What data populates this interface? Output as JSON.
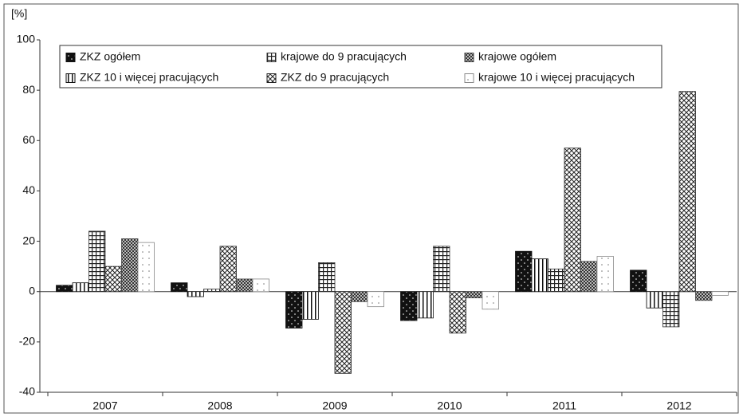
{
  "chart_data": {
    "type": "bar",
    "y_unit_label": "[%]",
    "categories": [
      "2007",
      "2008",
      "2009",
      "2010",
      "2011",
      "2012"
    ],
    "series": [
      {
        "name": "ZKZ ogółem",
        "pattern": "dots-dark",
        "color": "#111111",
        "values": [
          2.5,
          3.5,
          -14.5,
          -11.5,
          16,
          8.5
        ]
      },
      {
        "name": "ZKZ 10 i więcej pracujących",
        "pattern": "vlines",
        "color": "#111111",
        "values": [
          3.5,
          -2,
          -11,
          -10.5,
          13,
          -6.5
        ]
      },
      {
        "name": "krajowe do 9 pracujących",
        "pattern": "grid",
        "color": "#333333",
        "values": [
          24,
          1,
          11.5,
          18,
          9,
          -14
        ]
      },
      {
        "name": "ZKZ do 9 pracujących",
        "pattern": "cross",
        "color": "#222222",
        "values": [
          10,
          18,
          -32.5,
          -16.5,
          57,
          79.5
        ]
      },
      {
        "name": "krajowe ogółem",
        "pattern": "checker",
        "color": "#444444",
        "values": [
          21,
          5,
          -4,
          -2.5,
          12,
          -3.5
        ]
      },
      {
        "name": "krajowe 10 i więcej pracujących",
        "pattern": "dots-light",
        "color": "#888888",
        "values": [
          19.5,
          5,
          -6,
          -7,
          14,
          -1.5
        ]
      }
    ],
    "ylim": [
      -40,
      100
    ],
    "yticks": [
      -40,
      -20,
      0,
      20,
      40,
      60,
      80,
      100
    ],
    "grid": false,
    "legend": "top"
  }
}
